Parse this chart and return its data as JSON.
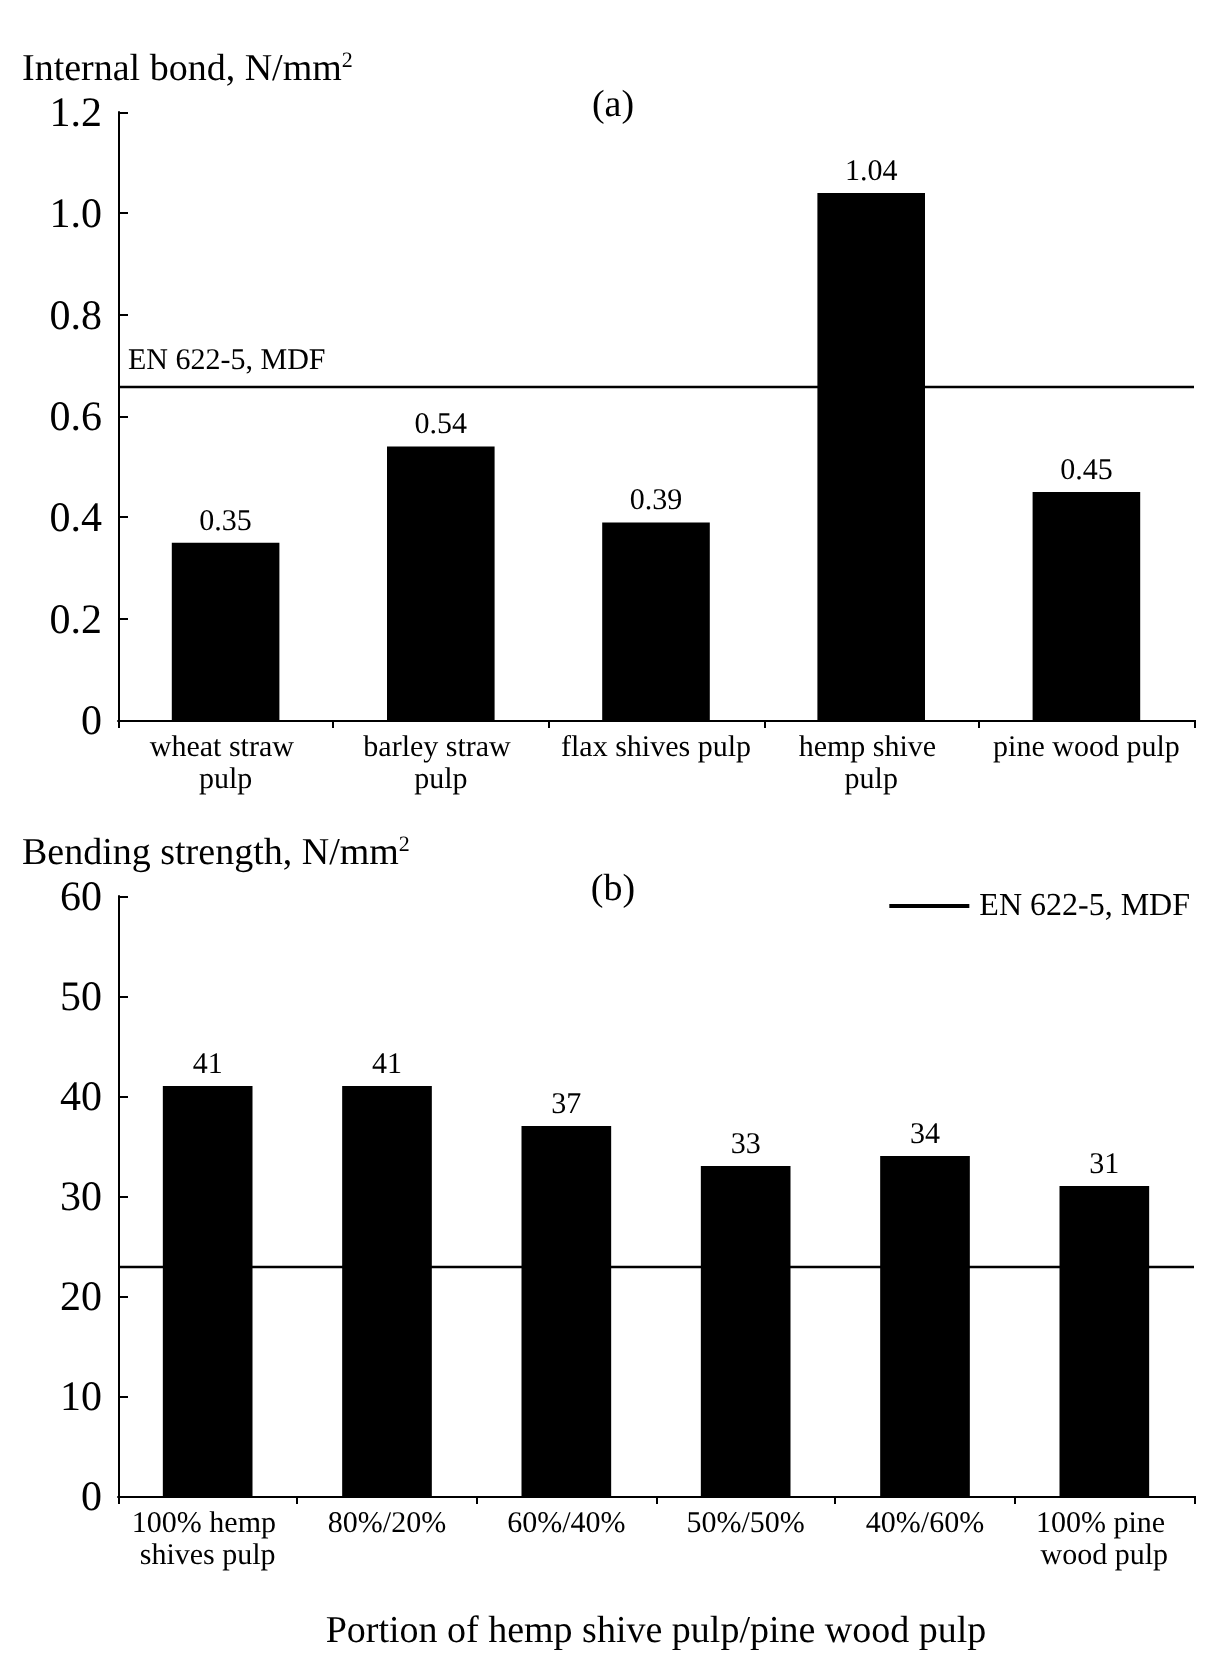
{
  "chart_data": [
    {
      "type": "bar",
      "title": "(a)",
      "ylabel": "Internal bond, N/mm$^{2}$",
      "categories": [
        "wheat straw pulp",
        "barley straw pulp",
        "flax shives pulp",
        "hemp shive pulp",
        "pine wood pulp"
      ],
      "values": [
        0.35,
        0.54,
        0.39,
        1.04,
        0.45
      ],
      "color": "#000000",
      "data_labels": true,
      "ylim": [
        0,
        1.2
      ],
      "yticks": [
        0,
        0.2,
        0.4,
        0.6,
        0.8,
        {
          "value": 1,
          "label": "1.0"
        },
        1.2
      ],
      "ref_lines": [
        {
          "axis": "y",
          "value": 0.66,
          "label": "EN 622-5, MDF",
          "color": "#000000"
        }
      ],
      "grid": false,
      "legend": false
    },
    {
      "type": "bar",
      "title": "(b)",
      "ylabel": "Bending strength, N/mm$^{2}$",
      "xlabel": "Portion of hemp shive pulp/pine wood pulp",
      "categories": [
        "100% hemp shives pulp",
        "80%/20%",
        "60%/40%",
        "50%/50%",
        "40%/60%",
        "100% pine wood pulp"
      ],
      "values": [
        41,
        41,
        37,
        33,
        34,
        31
      ],
      "color": "#000000",
      "data_labels": true,
      "ylim": [
        0,
        60
      ],
      "yticks": [
        0,
        10,
        20,
        30,
        40,
        50,
        60
      ],
      "ref_lines": [
        {
          "axis": "y",
          "value": 23,
          "label": "EN 622-5, MDF",
          "color": "#000000"
        }
      ],
      "grid": false,
      "legend": "top right"
    }
  ]
}
